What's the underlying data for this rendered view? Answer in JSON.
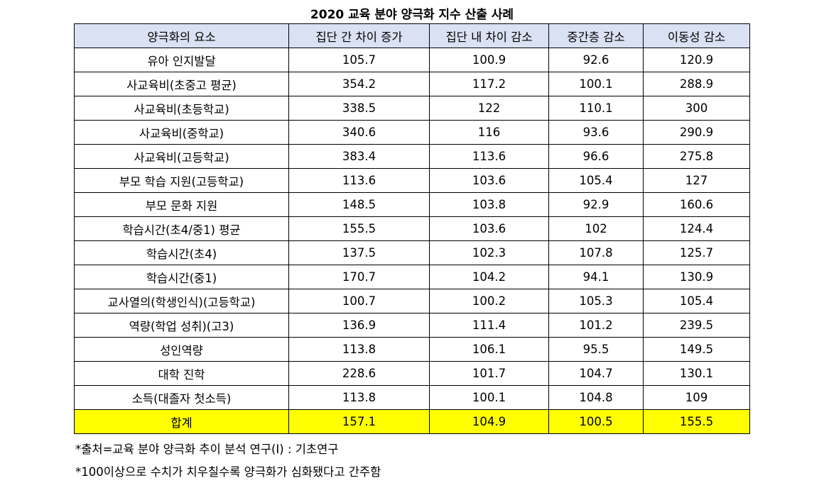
{
  "title": "2020 교육 분야 양극화 지수 산출 사례",
  "headers": [
    "양극화의 요소",
    "집단 간 차이 증가",
    "집단 내 차이 감소",
    "중간층 감소",
    "이동성 감소"
  ],
  "rows": [
    [
      "유아 인지발달",
      "105.7",
      "100.9",
      "92.6",
      "120.9"
    ],
    [
      "사교육비(초중고 평균)",
      "354.2",
      "117.2",
      "100.1",
      "288.9"
    ],
    [
      "사교육비(초등학교)",
      "338.5",
      "122",
      "110.1",
      "300"
    ],
    [
      "사교육비(중학교)",
      "340.6",
      "116",
      "93.6",
      "290.9"
    ],
    [
      "사교육비(고등학교)",
      "383.4",
      "113.6",
      "96.6",
      "275.8"
    ],
    [
      "부모 학습 지원(고등학교)",
      "113.6",
      "103.6",
      "105.4",
      "127"
    ],
    [
      "부모 문화 지원",
      "148.5",
      "103.8",
      "92.9",
      "160.6"
    ],
    [
      "학습시간(초4/중1) 평균",
      "155.5",
      "103.6",
      "102",
      "124.4"
    ],
    [
      "학습시간(초4)",
      "137.5",
      "102.3",
      "107.8",
      "125.7"
    ],
    [
      "학습시간(중1)",
      "170.7",
      "104.2",
      "94.1",
      "130.9"
    ],
    [
      "교사열의(학생인식)(고등학교)",
      "100.7",
      "100.2",
      "105.3",
      "105.4"
    ],
    [
      "역량(학업 성취)(고3)",
      "136.9",
      "111.4",
      "101.2",
      "239.5"
    ],
    [
      "성인역량",
      "113.8",
      "106.1",
      "95.5",
      "149.5"
    ],
    [
      "대학 진학",
      "228.6",
      "101.7",
      "104.7",
      "130.1"
    ],
    [
      "소득(대졸자 첫소득)",
      "113.8",
      "100.1",
      "104.8",
      "109"
    ]
  ],
  "total": [
    "합계",
    "157.1",
    "104.9",
    "100.5",
    "155.5"
  ],
  "notes": [
    "*출처=교육 분야 양극화 추이 분석 연구(Ⅰ) : 기초연구",
    "*100이상으로 수치가 치우칠수록 양극화가 심화됐다고 간주함"
  ],
  "colors": {
    "header_bg": "#d9e1f2",
    "total_bg": "#ffff00"
  }
}
